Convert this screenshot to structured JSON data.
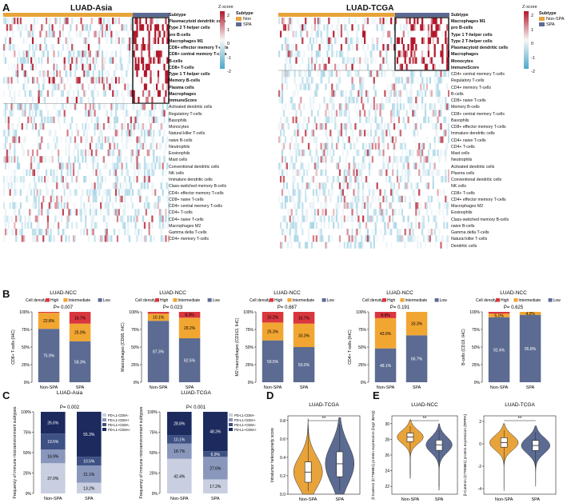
{
  "panel_labels": {
    "A": "A",
    "B": "B",
    "C": "C",
    "D": "D",
    "E": "E"
  },
  "heatmap_left": {
    "title": "LUAD-Asia",
    "zscore_label": "Z-score",
    "subtype_row": "Subtype",
    "ticks": [
      "2",
      "1",
      "0",
      "-1",
      "-2"
    ],
    "legend_title": "Subtype",
    "legend_items": [
      {
        "label": "Non",
        "color": "#e8a33a"
      },
      {
        "label": "SPA",
        "color": "#5c6b92"
      }
    ],
    "rows_bold": [
      "Plasmacytoid dendritic cells",
      "Type 2 T-helper cells",
      "pro B-cells",
      "Macrophages M1",
      "CD8+ effector memory T-cells",
      "CD8+ central memory T-cells",
      "B-cells",
      "CD8+ T-cells",
      "Type 1 T-helper cells",
      "Memory B-cells",
      "Plasma cells",
      "Macrophages",
      "ImmuneScore"
    ],
    "rows": [
      "Activated dendritic cells",
      "Regulatory T-cells",
      "Basophils",
      "Monocytes",
      "Natural killer T-cells",
      "naive B-cells",
      "Neutrophils",
      "Eosinophils",
      "Mast cells",
      "Conventional dendritic cells",
      "NK cells",
      "Immature dendritic cells",
      "Class-switched memory B-cells",
      "CD4+ effector memory T-cells",
      "CD8+ naive T-cells",
      "CD4+ central memory T-cells",
      "CD4+ T-cells",
      "CD4+ naive T-cells",
      "Macrophages M2",
      "Gamma delta T-cells",
      "CD4+ memory T-cells"
    ]
  },
  "heatmap_right": {
    "title": "LUAD-TCGA",
    "zscore_label": "Z-score",
    "subtype_row": "Subtype",
    "ticks": [
      "2",
      "1",
      "0",
      "-1",
      "-2"
    ],
    "legend_title": "Subtype",
    "legend_items": [
      {
        "label": "Non-SPA",
        "color": "#e8a33a"
      },
      {
        "label": "SPA",
        "color": "#5c6b92"
      }
    ],
    "rows_bold": [
      "Macrophages M1",
      "pro B-cells",
      "Type 1 T-helper cells",
      "Type 2 T-helper cells",
      "Plasmacytoid dendritic cells",
      "Macrophages",
      "Monocytes",
      "ImmuneScore"
    ],
    "rows": [
      "CD4+ central memory T-cells",
      "Regulatory T-cells",
      "CD4+ memory T-cells",
      "B-cells",
      "CD8+ naive T-cells",
      "Memory B-cells",
      "CD8+ central memory T-cells",
      "Basophils",
      "CD8+ effector memory T-cells",
      "Immature dendritic cells",
      "CD4+ naive T-cells",
      "CD4+ T-cells",
      "Mast cells",
      "Neutrophils",
      "Activated dendritic cells",
      "Plasma cells",
      "Conventional dendritic cells",
      "NK cells",
      "CD8+ T-cells",
      "CD4+ effector memory T-cells",
      "Macrophages M2",
      "Eosinophils",
      "Class-switched memory B-cells",
      "naive B-cells",
      "Gamma delta T-cells",
      "Natural killer T-cells",
      "Dendritic cells"
    ]
  },
  "colors": {
    "high": "#d9363e",
    "intermediate": "#f2a632",
    "low": "#5c6b92",
    "orange": "#e8a33a",
    "blue": "#5c6b92",
    "navy": "#1c2a5e"
  },
  "chart_data": [
    {
      "type": "bar",
      "title": "LUAD-NCC",
      "ylabel": "CD8+ T-cells (IHC)",
      "pvalue": "P= 0.007",
      "legend_title": "Cell density",
      "categories": [
        "Non-SPA",
        "SPA"
      ],
      "series": [
        {
          "name": "High",
          "values": [
            1.3,
            16.7
          ],
          "labels": [
            "",
            "16.7%"
          ]
        },
        {
          "name": "Intermediate",
          "values": [
            22.8,
            25.0
          ],
          "labels": [
            "22.8%",
            "25.0%"
          ]
        },
        {
          "name": "Low",
          "values": [
            75.9,
            58.3
          ],
          "labels": [
            "75.9%",
            "58.3%"
          ]
        }
      ],
      "ylim": [
        0,
        100
      ],
      "yticks": [
        "0%",
        "25%",
        "50%",
        "75%",
        "100%"
      ]
    },
    {
      "type": "bar",
      "title": "LUAD-NCC",
      "ylabel": "Macrophages (CD68, IHC)",
      "pvalue": "P= 0.023",
      "legend_title": "Cell density",
      "categories": [
        "Non-SPA",
        "SPA"
      ],
      "series": [
        {
          "name": "High",
          "values": [
            2.6,
            8.3
          ],
          "labels": [
            "",
            "8.3%"
          ]
        },
        {
          "name": "Intermediate",
          "values": [
            10.1,
            29.2
          ],
          "labels": [
            "10.1%",
            "29.2%"
          ]
        },
        {
          "name": "Low",
          "values": [
            87.3,
            62.5
          ],
          "labels": [
            "87.3%",
            "62.5%"
          ]
        }
      ],
      "ylim": [
        0,
        100
      ],
      "yticks": [
        "0%",
        "25%",
        "50%",
        "75%",
        "100%"
      ]
    },
    {
      "type": "bar",
      "title": "LUAD-NCC",
      "ylabel": "M2 macrophages (CD163, IHC)",
      "pvalue": "P= 0.687",
      "legend_title": "Cell density",
      "categories": [
        "Non-SPA",
        "SPA"
      ],
      "series": [
        {
          "name": "High",
          "values": [
            15.2,
            16.7
          ],
          "labels": [
            "15.2%",
            "16.7%"
          ]
        },
        {
          "name": "Intermediate",
          "values": [
            25.3,
            33.3
          ],
          "labels": [
            "25.3%",
            "33.3%"
          ]
        },
        {
          "name": "Low",
          "values": [
            59.5,
            50.0
          ],
          "labels": [
            "59.5%",
            "50.0%"
          ]
        }
      ],
      "ylim": [
        0,
        100
      ],
      "yticks": [
        "0%",
        "25%",
        "50%",
        "75%",
        "100%"
      ]
    },
    {
      "type": "bar",
      "title": "LUAD-NCC",
      "ylabel": "CD4+ T-cells (IHC)",
      "pvalue": "P= 0.191",
      "legend_title": "Cell density",
      "categories": [
        "Non-SPA",
        "SPA"
      ],
      "series": [
        {
          "name": "High",
          "values": [
            8.9,
            0
          ],
          "labels": [
            "8.9%",
            ""
          ]
        },
        {
          "name": "Intermediate",
          "values": [
            43.0,
            33.3
          ],
          "labels": [
            "43.0%",
            "33.3%"
          ]
        },
        {
          "name": "Low",
          "values": [
            48.1,
            66.7
          ],
          "labels": [
            "48.1%",
            "66.7%"
          ]
        }
      ],
      "ylim": [
        0,
        100
      ],
      "yticks": [
        "0%",
        "25%",
        "50%",
        "75%",
        "100%"
      ]
    },
    {
      "type": "bar",
      "title": "LUAD-NCC",
      "ylabel": "B-cells (CD19, IHC)",
      "pvalue": "P= 0.625",
      "legend_title": "Cell density",
      "categories": [
        "Non-SPA",
        "SPA"
      ],
      "series": [
        {
          "name": "High",
          "values": [
            2.5,
            0
          ],
          "labels": [
            "",
            ""
          ]
        },
        {
          "name": "Intermediate",
          "values": [
            5.1,
            4.2
          ],
          "labels": [
            "5.1%",
            "4.2%"
          ]
        },
        {
          "name": "Low",
          "values": [
            92.4,
            95.8
          ],
          "labels": [
            "92.4%",
            "95.8%"
          ]
        }
      ],
      "ylim": [
        0,
        100
      ],
      "yticks": [
        "0%",
        "25%",
        "50%",
        "75%",
        "100%"
      ]
    },
    {
      "type": "bar",
      "title": "LUAD-Asia",
      "ylabel": "Frequency of immune microenvironment subtypes",
      "pvalue": "P= 0.002",
      "categories": [
        "Non-SPA",
        "SPA"
      ],
      "series": [
        {
          "name": "PD-L1+CD8A+",
          "values": [
            26.6,
            55.3
          ],
          "labels": [
            "26.6%",
            "55.3%"
          ]
        },
        {
          "name": "PD-L1+CD8A-",
          "values": [
            19.5,
            10.5
          ],
          "labels": [
            "19.5%",
            "10.5%"
          ]
        },
        {
          "name": "PD-L1-CD8A+",
          "values": [
            16.9,
            21.1
          ],
          "labels": [
            "16.9%",
            "21.1%"
          ]
        },
        {
          "name": "PD-L1-CD8A-",
          "values": [
            37.0,
            13.2
          ],
          "labels": [
            "37.0%",
            "13.2%"
          ]
        }
      ],
      "ylim": [
        0,
        100
      ],
      "yticks": [
        "0%",
        "25%",
        "50%",
        "75%",
        "100%"
      ]
    },
    {
      "type": "bar",
      "title": "LUAD-TCGA",
      "ylabel": "Frequency of immune microenvironment subtypes",
      "pvalue": "P< 0.001",
      "categories": [
        "Non-SPA",
        "SPA"
      ],
      "series": [
        {
          "name": "PD-L1+CD8A+",
          "values": [
            28.8,
            48.3
          ],
          "labels": [
            "28.8%",
            "48.3%"
          ]
        },
        {
          "name": "PD-L1+CD8A-",
          "values": [
            10.1,
            6.9
          ],
          "labels": [
            "10.1%",
            "6.9%"
          ]
        },
        {
          "name": "PD-L1-CD8A+",
          "values": [
            18.7,
            27.6
          ],
          "labels": [
            "18.7%",
            "27.6%"
          ]
        },
        {
          "name": "PD-L1-CD8A-",
          "values": [
            42.4,
            17.2
          ],
          "labels": [
            "42.4%",
            "17.2%"
          ]
        }
      ],
      "ylim": [
        0,
        100
      ],
      "yticks": [
        "0%",
        "25%",
        "50%",
        "75%",
        "100%"
      ]
    },
    {
      "type": "violin",
      "title": "LUAD-TCGA",
      "ylabel": "Intratumor heterogeneity score",
      "sig": "**",
      "categories": [
        "Non-SPA",
        "SPA"
      ],
      "yticks": [
        "0.0",
        "0.2",
        "0.4",
        "0.6",
        "0.8"
      ],
      "ylim": [
        0,
        0.85
      ],
      "medians": [
        0.24,
        0.33
      ],
      "q1": [
        0.13,
        0.19
      ],
      "q3": [
        0.35,
        0.46
      ],
      "min": [
        0.0,
        0.0
      ],
      "max": [
        0.82,
        0.83
      ]
    },
    {
      "type": "violin",
      "title": "LUAD-NCC",
      "ylabel": "β-Catenin (CTNNB1) protein expression (log2 iBAQ)",
      "sig": "**",
      "categories": [
        "Non-SPA",
        "SPA"
      ],
      "yticks": [
        "22",
        "24",
        "26",
        "28",
        "30"
      ],
      "ylim": [
        21,
        31
      ],
      "medians": [
        28.3,
        27.3
      ],
      "q1": [
        27.7,
        26.6
      ],
      "q3": [
        28.8,
        27.9
      ],
      "min": [
        23.0,
        21.5
      ],
      "max": [
        30.5,
        30.0
      ]
    },
    {
      "type": "violin",
      "title": "LUAD-TCGA",
      "ylabel": "β-Catenin (CTNNB1) protein expression (RPPA)",
      "sig": "**",
      "categories": [
        "Non-SPA",
        "SPA"
      ],
      "yticks": [
        "-4",
        "-2",
        "0",
        "2"
      ],
      "ylim": [
        -4.5,
        2.5
      ],
      "medians": [
        0.1,
        -0.15
      ],
      "q1": [
        -0.3,
        -0.6
      ],
      "q3": [
        0.55,
        0.3
      ],
      "min": [
        -4.2,
        -3.8
      ],
      "max": [
        1.8,
        1.6
      ]
    }
  ]
}
